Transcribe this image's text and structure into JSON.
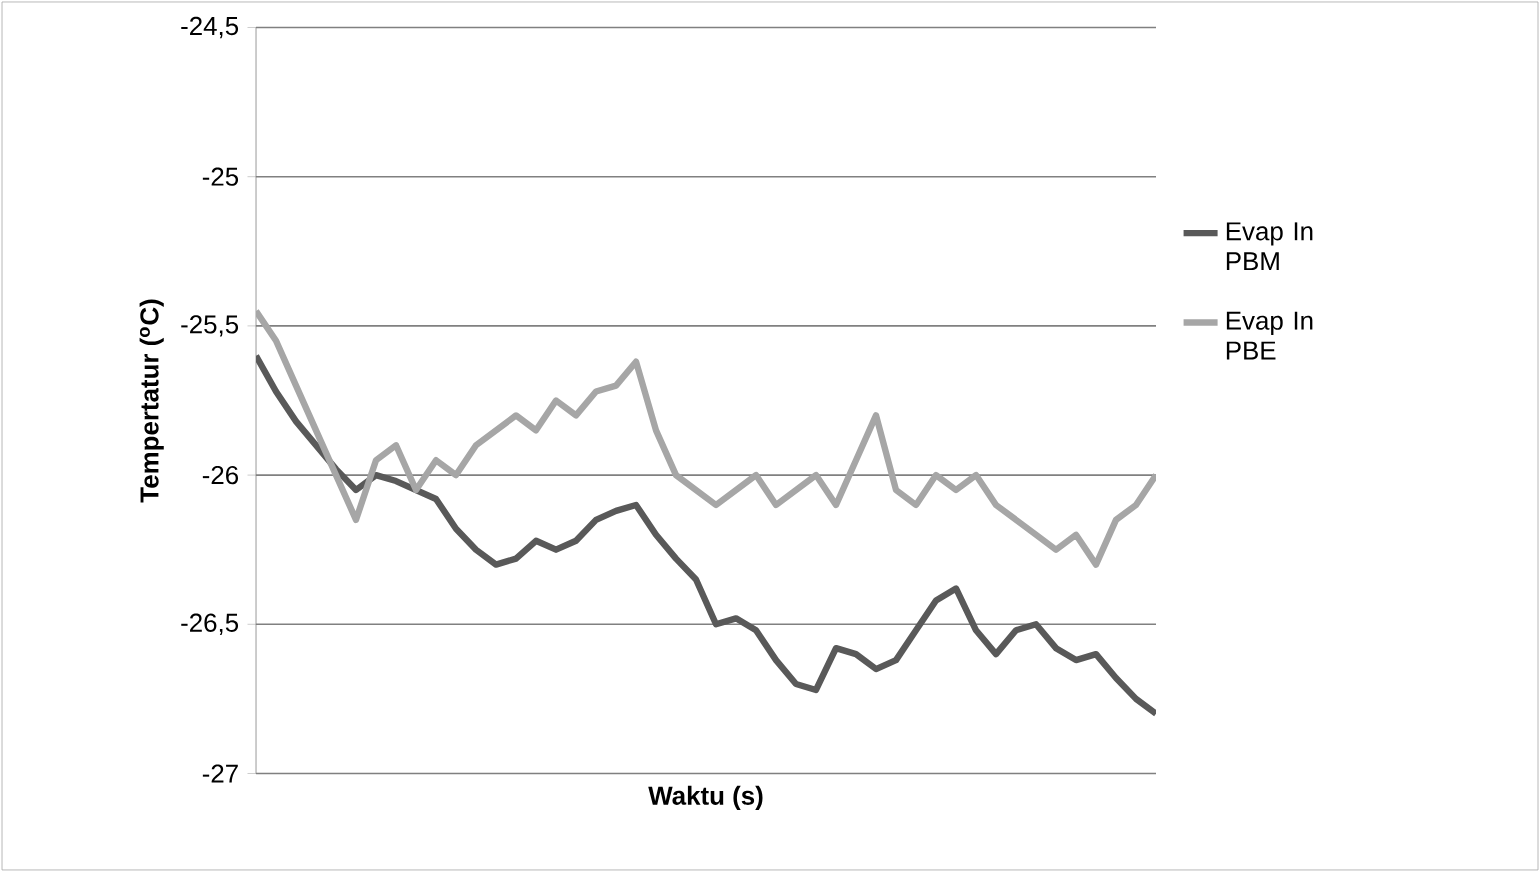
{
  "chart_data": {
    "type": "line",
    "xlabel": "Waktu (s)",
    "ylabel": "Tempertatur ($^{o}$C)",
    "categories": [
      null,
      null,
      null,
      null,
      null,
      null,
      null,
      null,
      null,
      null,
      null,
      null,
      null,
      null,
      null,
      null,
      null,
      null,
      null,
      null,
      null,
      null,
      null,
      null,
      null,
      null,
      null,
      null,
      null,
      null,
      null,
      null,
      null,
      null,
      null,
      null,
      null,
      null,
      null,
      null,
      null,
      null,
      null,
      null,
      null,
      null
    ],
    "series": [
      {
        "name": "Evap In PBM",
        "color": "#595959",
        "values": [
          -25.6,
          -25.72,
          -25.82,
          -25.9,
          -25.98,
          -26.05,
          -26.0,
          -26.02,
          -26.05,
          -26.08,
          -26.18,
          -26.25,
          -26.3,
          -26.28,
          -26.22,
          -26.25,
          -26.22,
          -26.15,
          -26.12,
          -26.1,
          -26.2,
          -26.28,
          -26.35,
          -26.5,
          -26.48,
          -26.52,
          -26.62,
          -26.7,
          -26.72,
          -26.58,
          -26.6,
          -26.65,
          -26.62,
          -26.52,
          -26.42,
          -26.38,
          -26.52,
          -26.6,
          -26.52,
          -26.5,
          -26.58,
          -26.62,
          -26.6,
          -26.68,
          -26.75,
          -26.8
        ]
      },
      {
        "name": "Evap In PBE",
        "color": "#a6a6a6",
        "values": [
          -25.45,
          -25.55,
          -25.7,
          -25.85,
          -26.0,
          -26.15,
          -25.95,
          -25.9,
          -26.05,
          -25.95,
          -26.0,
          -25.9,
          -25.85,
          -25.8,
          -25.85,
          -25.75,
          -25.8,
          -25.72,
          -25.7,
          -25.62,
          -25.85,
          -26.0,
          -26.05,
          -26.1,
          -26.05,
          -26.0,
          -26.1,
          -26.05,
          -26.0,
          -26.1,
          -25.95,
          -25.8,
          -26.05,
          -26.1,
          -26.0,
          -26.05,
          -26.0,
          -26.1,
          -26.15,
          -26.2,
          -26.25,
          -26.2,
          -26.3,
          -26.15,
          -26.1,
          -26.0
        ]
      }
    ],
    "ylim": [
      -27,
      -24.5
    ],
    "yticks": [
      -27,
      {
        "value": -26.5,
        "label": "-26,5"
      },
      -26,
      {
        "value": -25.5,
        "label": "-25,5"
      },
      -25,
      {
        "value": -24.5,
        "label": "-24,5"
      }
    ],
    "grid": "y",
    "legend": "right",
    "marker": "none",
    "line_style": "solid"
  }
}
